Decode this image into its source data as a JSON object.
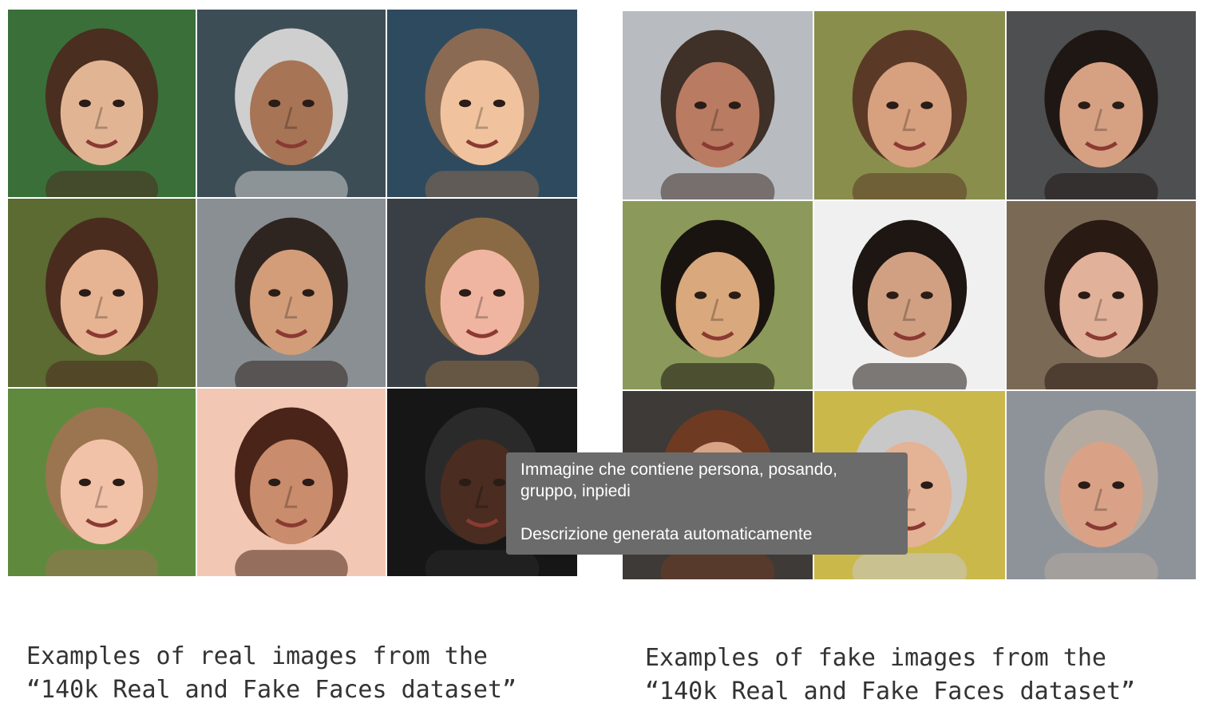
{
  "real_panel": {
    "caption_line1": "Examples of real images from the",
    "caption_line2": "“140k Real and Fake Faces dataset”",
    "tiles": [
      {
        "bg": "#3a6f3a",
        "skin": "#e1b594",
        "hair": "#4a2e20"
      },
      {
        "bg": "#3d4d55",
        "skin": "#a77456",
        "hair": "#cfcfcf"
      },
      {
        "bg": "#2e4a5e",
        "skin": "#f0c39e",
        "hair": "#8a6a52"
      },
      {
        "bg": "#5b6b32",
        "skin": "#e7b493",
        "hair": "#4a2c1f"
      },
      {
        "bg": "#8a8f93",
        "skin": "#d39d7a",
        "hair": "#2f2520"
      },
      {
        "bg": "#3a3f45",
        "skin": "#f0b5a0",
        "hair": "#8a6a44"
      },
      {
        "bg": "#5f8a3e",
        "skin": "#f1c2a8",
        "hair": "#9b7550"
      },
      {
        "bg": "#f2c7b3",
        "skin": "#c98c6c",
        "hair": "#4a2418"
      },
      {
        "bg": "#161616",
        "skin": "#4a2c20",
        "hair": "#2a2a2a"
      }
    ]
  },
  "fake_panel": {
    "caption_line1": "Examples of fake images from the",
    "caption_line2": "“140k Real and Fake Faces dataset”",
    "tiles": [
      {
        "bg": "#b8bcc0",
        "skin": "#b97b61",
        "hair": "#3f3028"
      },
      {
        "bg": "#8a8e4c",
        "skin": "#d7a07e",
        "hair": "#5a3a26"
      },
      {
        "bg": "#4d4f50",
        "skin": "#d6a083",
        "hair": "#1f1714"
      },
      {
        "bg": "#8b9a5a",
        "skin": "#d9a87c",
        "hair": "#1a1410"
      },
      {
        "bg": "#f0f0f0",
        "skin": "#d1a082",
        "hair": "#1d1612"
      },
      {
        "bg": "#7a6a55",
        "skin": "#e2b19a",
        "hair": "#2a1a14"
      },
      {
        "bg": "#3d3a38",
        "skin": "#d9a385",
        "hair": "#6e3a22"
      },
      {
        "bg": "#cbb84a",
        "skin": "#e4b295",
        "hair": "#c8c8c8"
      },
      {
        "bg": "#8e939a",
        "skin": "#d9a287",
        "hair": "#b4aaa0"
      }
    ]
  },
  "tooltip": {
    "line1": "Immagine che contiene persona, posando,",
    "line2": "gruppo, inpiedi",
    "line3": "Descrizione generata automaticamente"
  }
}
